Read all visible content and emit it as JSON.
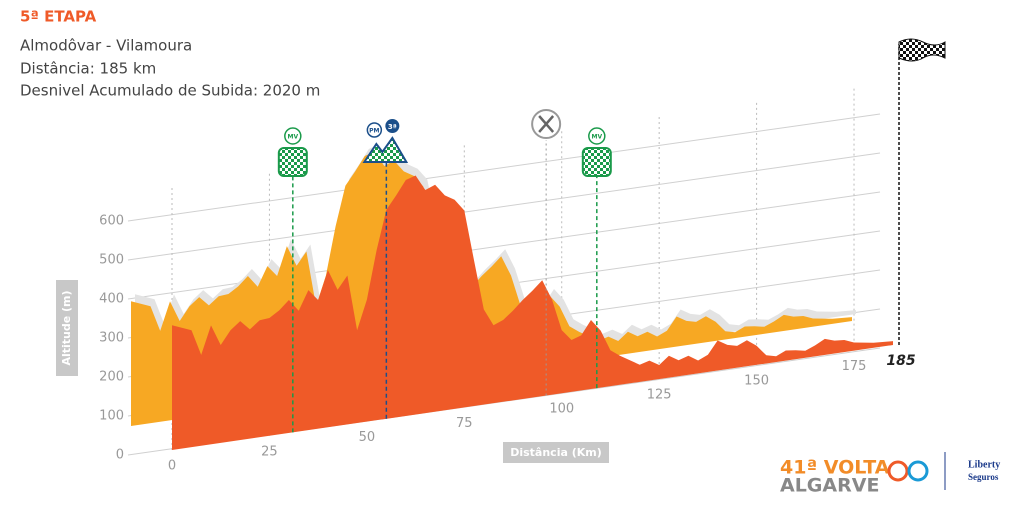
{
  "chart_data": {
    "type": "profile",
    "title": "5ª ETAPA",
    "subtitle": [
      "Almodôvar - Vilamoura",
      "Distância: 185 km",
      "Desnivel Acumulado de Subida: 2020 m"
    ],
    "y_label": "Altitude (m)",
    "x_label": "Distância (Km)",
    "x": [
      0,
      5,
      7.5,
      10,
      12.5,
      15,
      17.5,
      20,
      22.5,
      25,
      27.5,
      30,
      32.5,
      35,
      37.5,
      40,
      42.5,
      45,
      47.5,
      50,
      52.5,
      55,
      57.5,
      60,
      62.5,
      65,
      67.5,
      70,
      72.5,
      75,
      77.5,
      80,
      82.5,
      85,
      87.5,
      90,
      92.5,
      95,
      97.5,
      100,
      102.5,
      105,
      107.5,
      110,
      112.5,
      115,
      117.5,
      120,
      122.5,
      125,
      127.5,
      130,
      132.5,
      135,
      137.5,
      140,
      142.5,
      145,
      147.5,
      150,
      152.5,
      155,
      157.5,
      160,
      162.5,
      165,
      167.5,
      170,
      172.5,
      175,
      180,
      185
    ],
    "values": [
      320,
      300,
      233,
      305,
      251,
      285,
      305,
      280,
      300,
      302,
      318,
      341,
      310,
      359,
      330,
      403,
      349,
      382,
      238,
      313,
      436,
      536,
      569,
      605,
      613,
      572,
      582,
      551,
      536,
      505,
      374,
      244,
      200,
      210,
      230,
      254,
      274,
      297,
      244,
      162,
      133,
      141,
      177,
      146,
      92,
      74,
      59,
      44,
      51,
      36,
      56,
      41,
      49,
      33,
      44,
      77,
      62,
      56,
      67,
      49,
      21,
      15,
      26,
      23,
      18,
      28,
      41,
      33,
      31,
      21,
      13,
      10
    ],
    "colors": {
      "front": "#ef5a28",
      "back": "#f7a823",
      "shadow": "#e3e3e3"
    },
    "xlim": [
      0,
      185
    ],
    "ylim": [
      0,
      600
    ],
    "xticks": [
      0,
      25,
      50,
      75,
      100,
      125,
      150,
      175,
      185
    ],
    "yticks": [
      0,
      100,
      200,
      300,
      400,
      500,
      600
    ],
    "grid": true,
    "markers": [
      {
        "x": 31,
        "label": "MV",
        "icon": "sprint"
      },
      {
        "x": 55,
        "label": "PM",
        "category": "3ª",
        "icon": "climb"
      },
      {
        "x": 96,
        "icon": "feed"
      },
      {
        "x": 109,
        "label": "MV",
        "icon": "sprint"
      },
      {
        "x": 185,
        "icon": "finish"
      }
    ]
  },
  "logo": {
    "edition": "41ª VOLTA",
    "name": "ALGARVE",
    "sponsor": [
      "Liberty",
      "Seguros"
    ]
  }
}
